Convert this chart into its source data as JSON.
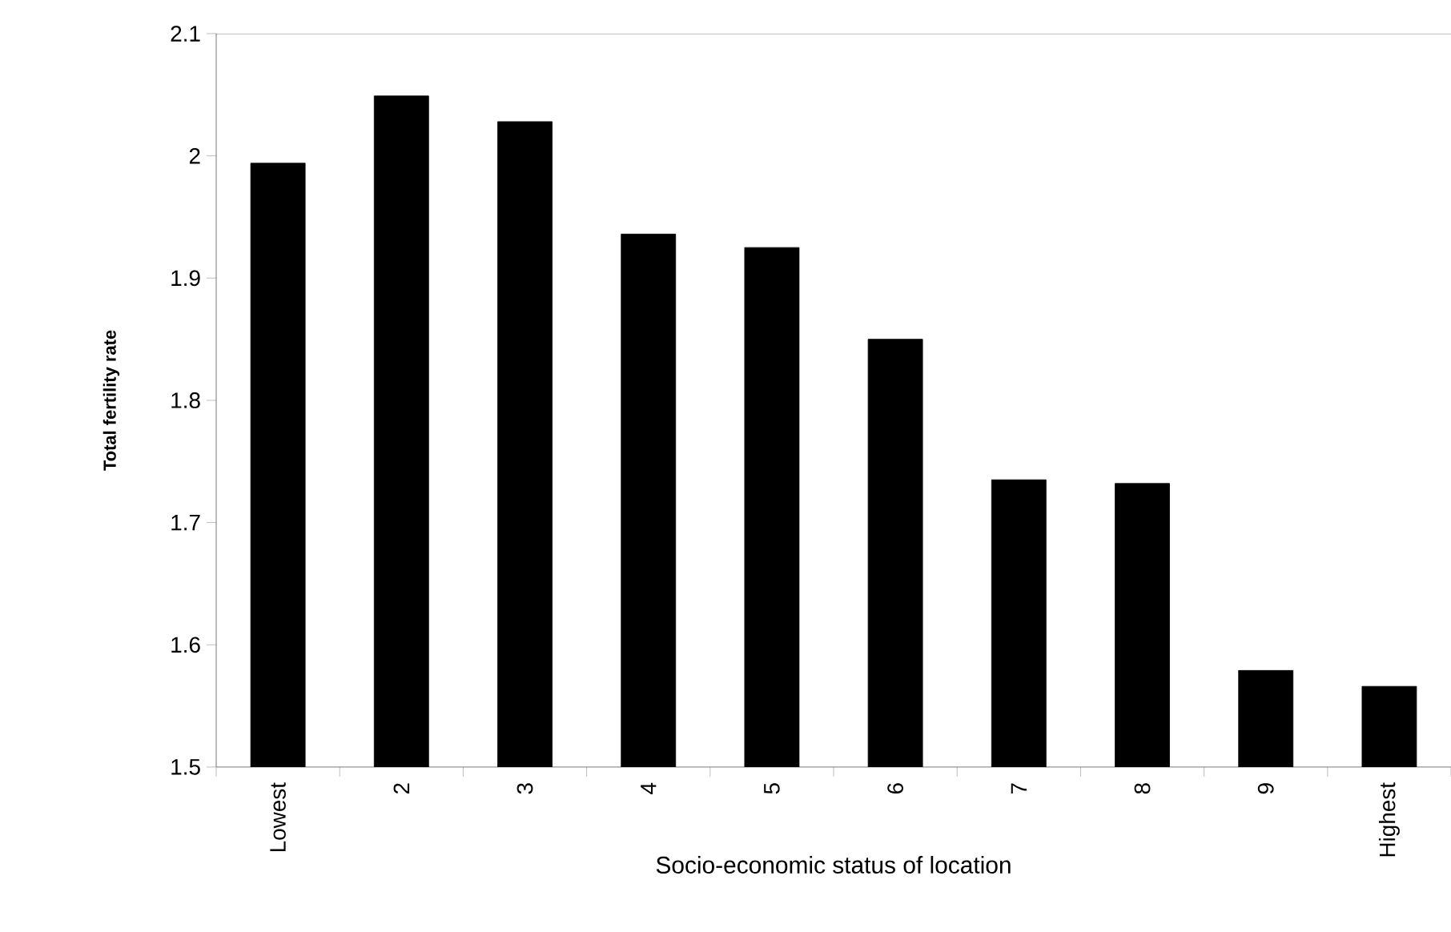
{
  "chart_data": {
    "type": "bar",
    "xlabel": "Socio-economic status of location",
    "ylabel": "Total fertility rate",
    "categories": [
      "Lowest",
      "2",
      "3",
      "4",
      "5",
      "6",
      "7",
      "8",
      "9",
      "Highest"
    ],
    "values": [
      1.994,
      2.049,
      2.028,
      1.936,
      1.925,
      1.85,
      1.735,
      1.732,
      1.579,
      1.566
    ],
    "color": "#000000",
    "ylim": [
      1.5,
      2.1
    ],
    "yticks": [
      1.5,
      1.6,
      1.7,
      1.8,
      1.9,
      2,
      2.1
    ]
  }
}
